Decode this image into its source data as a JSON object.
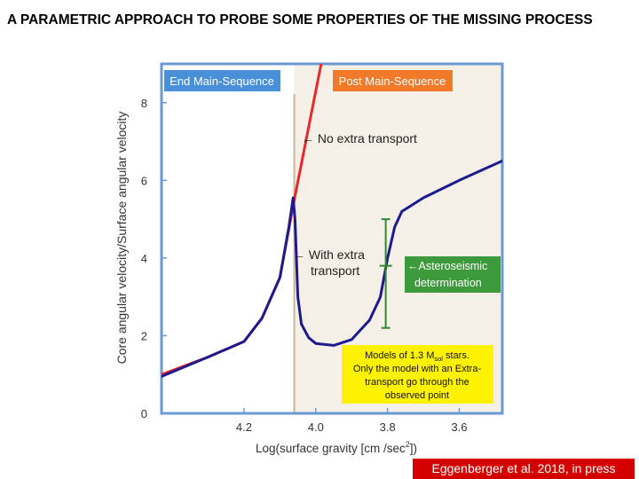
{
  "slide": {
    "title": "A PARAMETRIC APPROACH TO PROBE SOME PROPERTIES OF THE MISSING PROCESS",
    "credit": "Eggenberger et al. 2018, in press"
  },
  "chart_data": {
    "type": "line",
    "xlabel_main": "Log(surface gravity [cm /sec",
    "xlabel_sup": "2",
    "xlabel_end": "])",
    "ylabel": "Core angular velocity/Surface angular velocity",
    "xlim": [
      4.43,
      3.48
    ],
    "ylim": [
      0,
      9
    ],
    "x_ticks": [
      4.2,
      4.0,
      3.8,
      3.6
    ],
    "x_tick_labels": [
      "4.2",
      "4.0",
      "3.8",
      "3.6"
    ],
    "y_ticks": [
      0,
      2,
      4,
      6,
      8
    ],
    "y_tick_labels": [
      "0",
      "2",
      "4",
      "6",
      "8"
    ],
    "phase_divider_x": 4.06,
    "series": [
      {
        "color": "#e8282a",
        "points": [
          [
            4.43,
            1.0
          ],
          [
            4.3,
            1.45
          ],
          [
            4.2,
            1.85
          ],
          [
            4.15,
            2.45
          ],
          [
            4.1,
            3.5
          ],
          [
            4.07,
            5.0
          ],
          [
            4.06,
            5.5
          ],
          [
            4.03,
            6.9
          ],
          [
            4.0,
            8.3
          ],
          [
            3.985,
            9.0
          ]
        ]
      },
      {
        "color": "#1f1a8c",
        "points": [
          [
            4.43,
            0.95
          ],
          [
            4.3,
            1.45
          ],
          [
            4.2,
            1.85
          ],
          [
            4.15,
            2.45
          ],
          [
            4.1,
            3.5
          ],
          [
            4.075,
            4.8
          ],
          [
            4.063,
            5.55
          ],
          [
            4.058,
            5.0
          ],
          [
            4.05,
            3.0
          ],
          [
            4.04,
            2.3
          ],
          [
            4.02,
            1.95
          ],
          [
            4.0,
            1.8
          ],
          [
            3.95,
            1.75
          ],
          [
            3.9,
            1.9
          ],
          [
            3.85,
            2.4
          ],
          [
            3.82,
            3.0
          ],
          [
            3.8,
            4.0
          ],
          [
            3.78,
            4.8
          ],
          [
            3.76,
            5.2
          ],
          [
            3.7,
            5.55
          ],
          [
            3.6,
            6.0
          ],
          [
            3.48,
            6.5
          ]
        ]
      }
    ],
    "observed_point": {
      "x": 3.805,
      "y": 3.8,
      "error_low": 2.2,
      "error_high": 5.0
    },
    "labels": {
      "end_ms": "End Main-Sequence",
      "post_ms": "Post Main-Sequence",
      "no_extra": "← No extra transport",
      "with_extra_1": "← With extra",
      "with_extra_2": "transport",
      "astero_1": "←Asteroseismic",
      "astero_2": "determination",
      "models_1_pre": "Models of 1.3 M",
      "models_1_sub": "sol",
      "models_1_post": " stars.",
      "models_2": "Only the model with an Extra-",
      "models_3": "transport go through the",
      "models_4": "observed point"
    },
    "colors": {
      "end_ms_bg": "#4a90d9",
      "post_ms_bg": "#f07a2a",
      "astero_bg": "#3c9a3c",
      "models_bg": "#fff200",
      "frame": "#6a9ad4",
      "post_region_tint": "#ebe4d4",
      "divider": "#c8b89a"
    }
  }
}
